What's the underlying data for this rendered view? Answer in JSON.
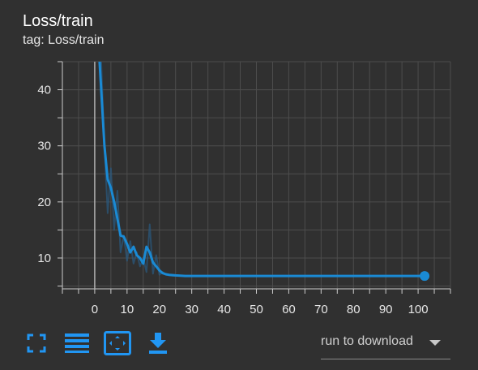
{
  "card": {
    "title": "Loss/train",
    "subtitle": "tag: Loss/train"
  },
  "toolbar": {
    "icons": [
      "fullscreen-icon",
      "data-table-icon",
      "fit-domain-icon",
      "download-icon"
    ],
    "accent_color": "#2196f3"
  },
  "download_select": {
    "label": "run to download"
  },
  "chart_data": {
    "type": "line",
    "title": "",
    "xlabel": "",
    "ylabel": "",
    "xlim": [
      -10,
      110
    ],
    "ylim": [
      4.5,
      45
    ],
    "x_ticks": [
      0,
      10,
      20,
      30,
      40,
      50,
      60,
      70,
      80,
      90,
      100
    ],
    "y_ticks": [
      10,
      20,
      30,
      40
    ],
    "grid": true,
    "series": [
      {
        "role": "raw",
        "color": "#2a5a80",
        "x": [
          2,
          3,
          4,
          5,
          6,
          7,
          8,
          9,
          10,
          11,
          12,
          13,
          14,
          15,
          16,
          17,
          18,
          19,
          20,
          21,
          22,
          23,
          25,
          28,
          30,
          35,
          40,
          45,
          50,
          55,
          60,
          65,
          70,
          75,
          80,
          85,
          90,
          95,
          100,
          102
        ],
        "y": [
          45,
          30,
          18,
          26,
          15,
          22,
          11,
          14,
          9.5,
          13,
          9,
          11,
          8.5,
          10,
          7.5,
          16,
          7.2,
          10.5,
          7,
          7.5,
          7,
          6.9,
          6.8,
          6.8,
          6.8,
          6.8,
          6.8,
          6.8,
          6.8,
          6.8,
          6.8,
          6.8,
          6.8,
          6.8,
          6.8,
          6.8,
          6.8,
          6.8,
          6.8,
          6.8
        ]
      },
      {
        "role": "smoothed",
        "color": "#1a8ad4",
        "x": [
          1.5,
          2,
          3,
          4,
          5,
          6,
          7,
          8,
          9,
          10,
          11,
          12,
          13,
          14,
          15,
          16,
          17,
          18,
          19,
          20,
          21,
          22,
          23,
          25,
          28,
          30,
          35,
          40,
          45,
          50,
          55,
          60,
          65,
          70,
          75,
          80,
          85,
          90,
          95,
          100,
          102
        ],
        "y": [
          45,
          40,
          30,
          24,
          22.5,
          20,
          17,
          14,
          13.8,
          12.5,
          11,
          12,
          10.5,
          10,
          9,
          12,
          11,
          9.2,
          8.5,
          7.8,
          7.3,
          7.1,
          7.0,
          6.9,
          6.8,
          6.8,
          6.8,
          6.8,
          6.8,
          6.8,
          6.8,
          6.8,
          6.8,
          6.8,
          6.8,
          6.8,
          6.8,
          6.8,
          6.8,
          6.8,
          6.8
        ]
      }
    ],
    "last_point": {
      "x": 102,
      "y": 6.8
    }
  }
}
